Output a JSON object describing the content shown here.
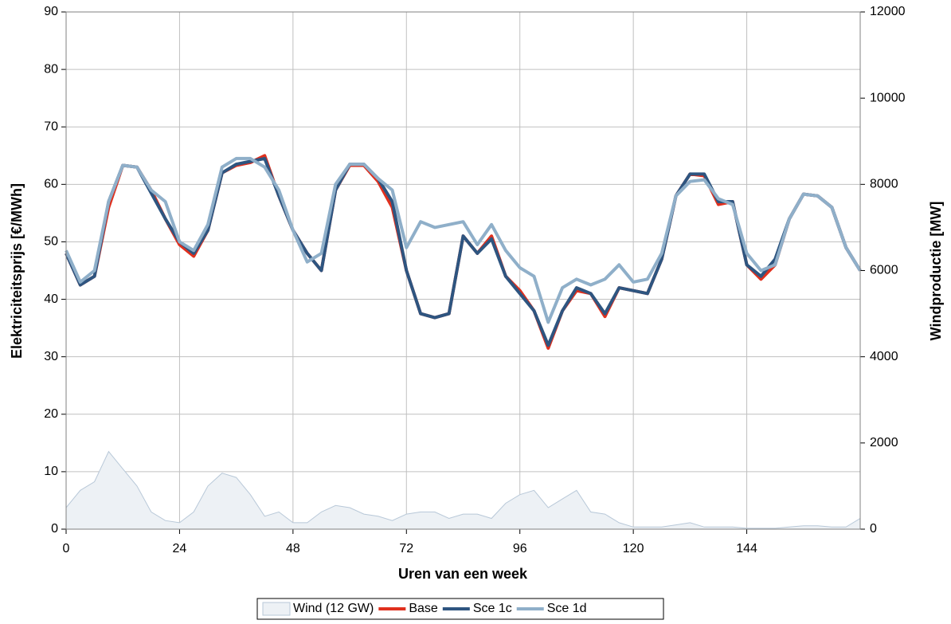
{
  "chart_data": {
    "type": "line",
    "xlabel": "Uren van een week",
    "ylabel": "Elektriciteitsprijs [€/MWh]",
    "y2label": "Windproductie [MW]",
    "x": [
      0,
      3,
      6,
      9,
      12,
      15,
      18,
      21,
      24,
      27,
      30,
      33,
      36,
      39,
      42,
      45,
      48,
      51,
      54,
      57,
      60,
      63,
      66,
      69,
      72,
      75,
      78,
      81,
      84,
      87,
      90,
      93,
      96,
      99,
      102,
      105,
      108,
      111,
      114,
      117,
      120,
      123,
      126,
      129,
      132,
      135,
      138,
      141,
      144,
      147,
      150,
      153,
      156,
      159,
      162,
      165,
      168
    ],
    "series": [
      {
        "name": "Wind (12 GW)",
        "type": "area",
        "axis": "y2",
        "color": "#edf1f5",
        "edge": "#b8c8d8",
        "values": [
          500,
          900,
          1100,
          1800,
          1400,
          1000,
          400,
          200,
          150,
          400,
          1000,
          1300,
          1200,
          800,
          300,
          400,
          150,
          150,
          400,
          550,
          500,
          350,
          300,
          200,
          350,
          400,
          400,
          250,
          350,
          350,
          250,
          600,
          800,
          900,
          500,
          700,
          900,
          400,
          350,
          150,
          50,
          50,
          50,
          100,
          150,
          50,
          50,
          50,
          20,
          20,
          20,
          50,
          80,
          80,
          50,
          50,
          250
        ]
      },
      {
        "name": "Base",
        "color": "#e0301e",
        "values": [
          48,
          42.5,
          44,
          56,
          63.3,
          63,
          59,
          54,
          49.5,
          47.5,
          52,
          62,
          63.3,
          63.8,
          65,
          58,
          52,
          48,
          45,
          59,
          63.3,
          63.3,
          60.5,
          56,
          45,
          37.5,
          36.8,
          37.5,
          51,
          48,
          51,
          44,
          41.5,
          38,
          31.5,
          38,
          41.5,
          41,
          37,
          42,
          41.5,
          41,
          47,
          58,
          61.8,
          61.5,
          56.5,
          57,
          46,
          43.5,
          46,
          54,
          58.3,
          58,
          56,
          49,
          45
        ]
      },
      {
        "name": "Sce 1c",
        "color": "#2e5580",
        "values": [
          48,
          42.5,
          44,
          57,
          63.3,
          63,
          58.5,
          54,
          50,
          48,
          52,
          62,
          63.5,
          64,
          64.5,
          58,
          52,
          48,
          45,
          59,
          63.5,
          63.5,
          61,
          57,
          45,
          37.5,
          36.8,
          37.5,
          51,
          48,
          50.5,
          44,
          41,
          38,
          32,
          38,
          42,
          41,
          37.5,
          42,
          41.5,
          41,
          47,
          58,
          61.8,
          61.8,
          57,
          57,
          46,
          44,
          47,
          54,
          58.3,
          58,
          56,
          49,
          45
        ]
      },
      {
        "name": "Sce 1d",
        "color": "#8fafc9",
        "values": [
          48.5,
          43,
          45,
          57,
          63.3,
          63,
          59,
          57,
          50,
          48.5,
          53,
          63,
          64.5,
          64.5,
          63,
          59,
          52,
          46.5,
          48,
          60,
          63.5,
          63.5,
          61,
          59,
          49,
          53.5,
          52.5,
          53,
          53.5,
          49.5,
          53,
          48.5,
          45.5,
          44,
          36,
          42,
          43.5,
          42.5,
          43.5,
          46,
          43,
          43.5,
          48,
          58,
          60.5,
          60.8,
          57.5,
          56.5,
          48,
          45,
          46,
          54,
          58.3,
          58,
          56,
          49,
          45
        ]
      }
    ],
    "xlim": [
      0,
      168
    ],
    "xticks": [
      0,
      24,
      48,
      72,
      96,
      120,
      144
    ],
    "ylim": [
      0,
      90
    ],
    "yticks": [
      0,
      10,
      20,
      30,
      40,
      50,
      60,
      70,
      80,
      90
    ],
    "y2lim": [
      0,
      12000
    ],
    "y2ticks": [
      0,
      2000,
      4000,
      6000,
      8000,
      10000,
      12000
    ],
    "grid": true
  }
}
